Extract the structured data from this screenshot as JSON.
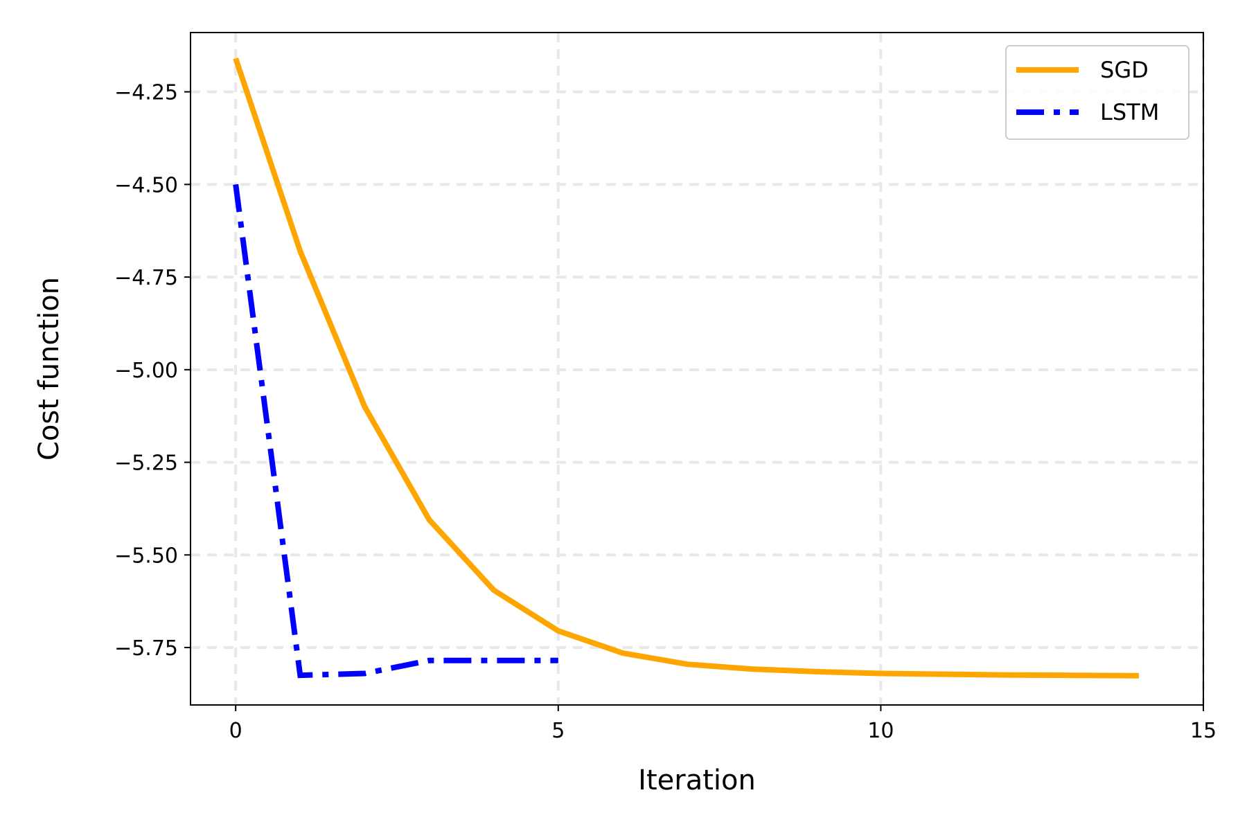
{
  "chart_data": {
    "type": "line",
    "xlabel": "Iteration",
    "ylabel": "Cost function",
    "xlim": [
      -0.7,
      15
    ],
    "ylim": [
      -5.905,
      -4.09
    ],
    "xticks": [
      0,
      5,
      10,
      15
    ],
    "xtick_labels": [
      "0",
      "5",
      "10",
      "15"
    ],
    "yticks": [
      -4.25,
      -4.5,
      -4.75,
      -5.0,
      -5.25,
      -5.5,
      -5.75
    ],
    "ytick_labels": [
      "−4.25",
      "−4.50",
      "−4.75",
      "−5.00",
      "−5.25",
      "−5.50",
      "−5.75"
    ],
    "grid": true,
    "legend_position": "top-right",
    "series": [
      {
        "name": "SGD",
        "color": "#FFA500",
        "style": "solid",
        "x": [
          0,
          1,
          2,
          3,
          4,
          5,
          6,
          7,
          8,
          9,
          10,
          11,
          12,
          13,
          14
        ],
        "y": [
          -4.16,
          -4.68,
          -5.1,
          -5.405,
          -5.595,
          -5.705,
          -5.765,
          -5.795,
          -5.808,
          -5.815,
          -5.82,
          -5.822,
          -5.824,
          -5.825,
          -5.826
        ]
      },
      {
        "name": "LSTM",
        "color": "#0000FF",
        "style": "dashdot",
        "x": [
          0,
          1,
          2,
          3,
          4,
          5
        ],
        "y": [
          -4.5,
          -5.825,
          -5.82,
          -5.785,
          -5.785,
          -5.785
        ]
      }
    ]
  }
}
